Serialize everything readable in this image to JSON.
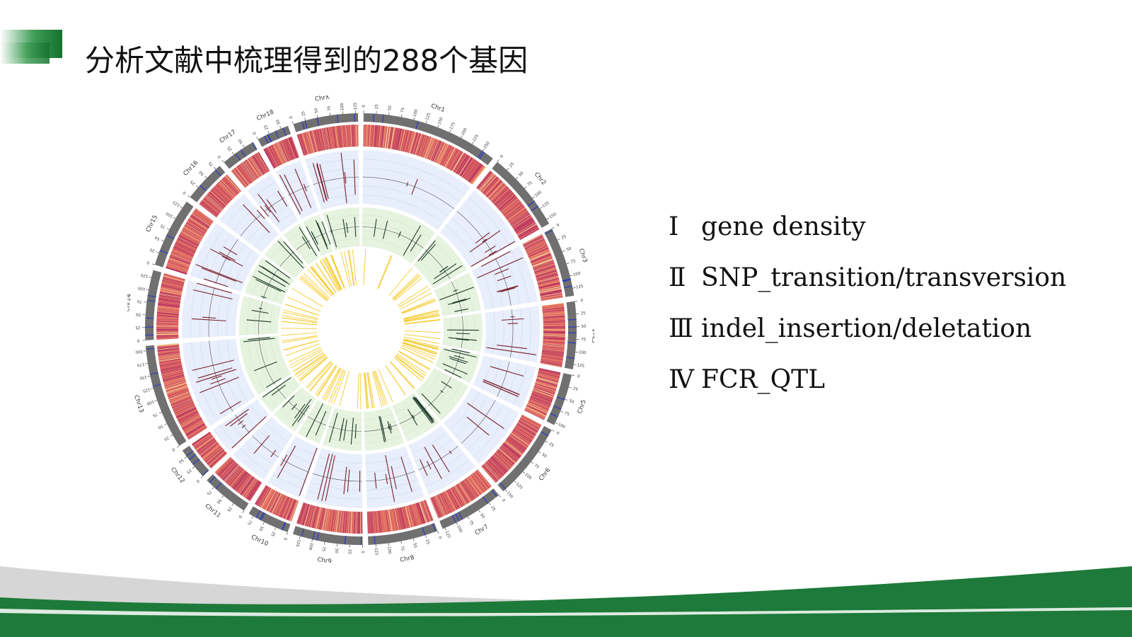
{
  "slide": {
    "title": "分析文献中梳理得到的288个基因"
  },
  "legend": [
    {
      "num": "I",
      "text": "gene density"
    },
    {
      "num": "Ⅱ",
      "text": "SNP_transition/transversion"
    },
    {
      "num": "Ⅲ",
      "text": "indel_insertion/deletation"
    },
    {
      "num": "Ⅳ",
      "text": "FCR_QTL"
    }
  ],
  "colors": {
    "accent_green": "#1e7a3a",
    "ideogram": "#707070",
    "heat_low": "#f6e6a0",
    "heat_mid": "#e7705a",
    "heat_high": "#b0255e",
    "snp_band": "#e8eefb",
    "indel_band": "#e6f3df",
    "qtl": "#f5c518",
    "marker_blue": "#2b3bbf"
  },
  "chart_data": {
    "type": "circos",
    "tracks": [
      "gene density",
      "SNP transition/transversion",
      "indel insertion/deletion",
      "FCR_QTL"
    ],
    "chromosomes": [
      {
        "name": "Chr1",
        "size": 275,
        "ticks": [
          "0",
          "25",
          "50",
          "75",
          "100",
          "125",
          "150",
          "175",
          "200",
          "225",
          "250"
        ]
      },
      {
        "name": "Chr2",
        "size": 160,
        "ticks": [
          "0",
          "25",
          "50",
          "75",
          "100",
          "125",
          "150"
        ]
      },
      {
        "name": "Chr3",
        "size": 140,
        "ticks": [
          "0",
          "25",
          "50",
          "75",
          "100",
          "125"
        ]
      },
      {
        "name": "Chr4",
        "size": 135,
        "ticks": [
          "0",
          "25",
          "50",
          "75",
          "100",
          "125"
        ]
      },
      {
        "name": "Chr5",
        "size": 105,
        "ticks": [
          "0",
          "25",
          "50",
          "75",
          "100"
        ]
      },
      {
        "name": "Chr6",
        "size": 155,
        "ticks": [
          "0",
          "25",
          "50",
          "75",
          "100",
          "125",
          "150"
        ]
      },
      {
        "name": "Chr7",
        "size": 130,
        "ticks": [
          "0",
          "25",
          "50",
          "75",
          "100",
          "125"
        ]
      },
      {
        "name": "Chr8",
        "size": 140,
        "ticks": [
          "0",
          "25",
          "50",
          "75",
          "100",
          "125"
        ]
      },
      {
        "name": "Chr9",
        "size": 140,
        "ticks": [
          "0",
          "25",
          "50",
          "75",
          "100",
          "125"
        ]
      },
      {
        "name": "Chr10",
        "size": 85,
        "ticks": [
          "0",
          "25",
          "50",
          "75"
        ]
      },
      {
        "name": "Chr11",
        "size": 95,
        "ticks": [
          "0",
          "25",
          "50",
          "75"
        ]
      },
      {
        "name": "Chr12",
        "size": 65,
        "ticks": [
          "0",
          "25",
          "50"
        ]
      },
      {
        "name": "Chr13",
        "size": 210,
        "ticks": [
          "0",
          "25",
          "50",
          "75",
          "100",
          "125",
          "150",
          "175",
          "200"
        ]
      },
      {
        "name": "Chr14",
        "size": 140,
        "ticks": [
          "0",
          "25",
          "50",
          "75",
          "100",
          "125"
        ]
      },
      {
        "name": "Chr15",
        "size": 140,
        "ticks": [
          "0",
          "25",
          "50",
          "75",
          "100",
          "125"
        ]
      },
      {
        "name": "Chr16",
        "size": 85,
        "ticks": [
          "0",
          "25",
          "50",
          "75"
        ]
      },
      {
        "name": "Chr17",
        "size": 70,
        "ticks": [
          "0",
          "25",
          "50"
        ]
      },
      {
        "name": "Chr18",
        "size": 65,
        "ticks": [
          "0",
          "25",
          "50"
        ]
      },
      {
        "name": "ChrX",
        "size": 130,
        "ticks": [
          "0",
          "25",
          "50",
          "75",
          "100",
          "125"
        ]
      }
    ]
  }
}
